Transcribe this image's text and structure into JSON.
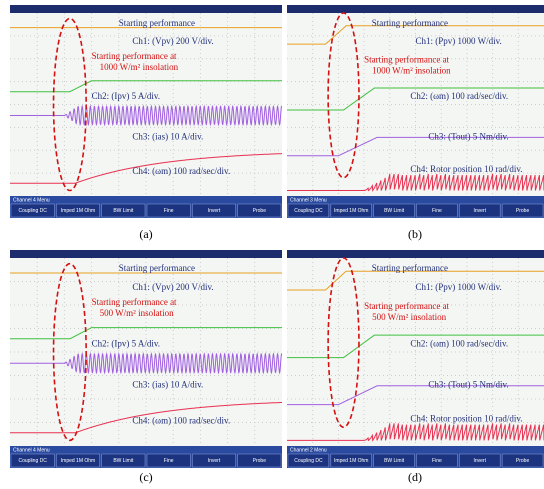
{
  "panels": [
    {
      "label": "(a)",
      "heading": "Starting performance",
      "annotation": [
        "Starting performance at",
        "1000 W/m² insolation"
      ],
      "channels": [
        "Ch1: (Vpv) 200 V/div.",
        "Ch2: (Ipv) 5 A/div.",
        "Ch3: (ias) 10 A/div.",
        "Ch4: (ωm) 100 rad/sec/div."
      ],
      "menu": "Channel 4 Menu",
      "buttons": [
        "Coupling DC",
        "Imped 1M Ohm",
        "BW Limit",
        "Fine",
        "Invert",
        "Probe"
      ]
    },
    {
      "label": "(b)",
      "heading": "Starting performance",
      "annotation": [
        "Starting performance at",
        "1000 W/m² insolation"
      ],
      "channels": [
        "Ch1: (Ppv) 1000 W/div.",
        "Ch2: (ωm) 100 rad/sec/div.",
        "Ch3: (Tout) 5 Nm/div.",
        "Ch4: Rotor position 10 rad/div."
      ],
      "menu": "Channel 3 Menu",
      "buttons": [
        "Coupling DC",
        "Imped 1M Ohm",
        "BW Limit",
        "Fine",
        "Invert",
        "Probe"
      ]
    },
    {
      "label": "(c)",
      "heading": "Starting performance",
      "annotation": [
        "Starting performance at",
        "500 W/m² insolation"
      ],
      "channels": [
        "Ch1: (Vpv) 200 V/div.",
        "Ch2: (Ipv) 5 A/div.",
        "Ch3: (ias) 10 A/div.",
        "Ch4: (ωm) 100 rad/sec/div."
      ],
      "menu": "Channel 4 Menu",
      "buttons": [
        "Coupling DC",
        "Imped 1M Ohm",
        "BW Limit",
        "Fine",
        "Invert",
        "Probe"
      ]
    },
    {
      "label": "(d)",
      "heading": "Starting performance",
      "annotation": [
        "Starting performance at",
        "500 W/m² insolation"
      ],
      "channels": [
        "Ch1: (Ppv) 1000 W/div.",
        "Ch2: (ωm) 100 rad/sec/div.",
        "Ch3: (Tout) 5 Nm/div.",
        "Ch4: Rotor position 10 rad/div."
      ],
      "menu": "Channel 2 Menu",
      "buttons": [
        "Coupling DC",
        "Imped 1M Ohm",
        "BW Limit",
        "Fine",
        "Invert",
        "Probe"
      ]
    }
  ]
}
